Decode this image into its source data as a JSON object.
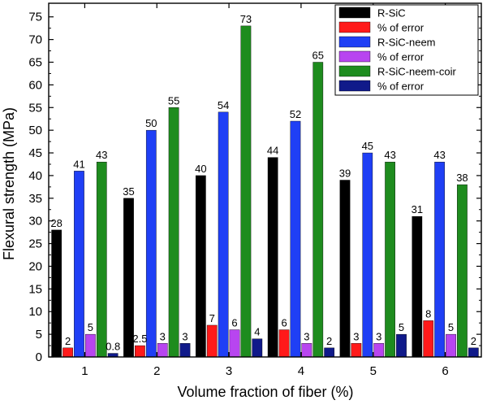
{
  "chart_data": {
    "type": "bar",
    "xlabel": "Volume fraction of fiber (%)",
    "ylabel": "Flexural strength (MPa)",
    "ylim": [
      0,
      78
    ],
    "yticks": [
      0,
      5,
      10,
      15,
      20,
      25,
      30,
      35,
      40,
      45,
      50,
      55,
      60,
      65,
      70,
      75
    ],
    "categories": [
      "1",
      "2",
      "3",
      "4",
      "5",
      "6"
    ],
    "legend_position": "top-right",
    "grid": false,
    "series": [
      {
        "name": "R-SiC",
        "color": "#000000",
        "values": [
          28,
          35,
          40,
          44,
          39,
          31
        ],
        "labels": [
          "28",
          "35",
          "40",
          "44",
          "39",
          "31"
        ]
      },
      {
        "name": "% of error",
        "color": "#ff1a1a",
        "values": [
          2,
          2.5,
          7,
          6,
          3,
          8
        ],
        "labels": [
          "2",
          "2.5",
          "7",
          "6",
          "3",
          "8"
        ]
      },
      {
        "name": "R-SiC-neem",
        "color": "#1f3ff5",
        "values": [
          41,
          50,
          54,
          52,
          45,
          43
        ],
        "labels": [
          "41",
          "50",
          "54",
          "52",
          "45",
          "43"
        ]
      },
      {
        "name": "% of error",
        "color": "#b845f0",
        "values": [
          5,
          3,
          6,
          3,
          3,
          5
        ],
        "labels": [
          "5",
          "3",
          "6",
          "3",
          "3",
          "5"
        ]
      },
      {
        "name": "R-SiC-neem-coir",
        "color": "#1e8c1e",
        "values": [
          43,
          55,
          73,
          65,
          43,
          38
        ],
        "labels": [
          "43",
          "55",
          "73",
          "65",
          "43",
          "38"
        ]
      },
      {
        "name": "% of error",
        "color": "#101a8a",
        "values": [
          0.8,
          3,
          4,
          2,
          5,
          2
        ],
        "labels": [
          "0.8",
          "3",
          "4",
          "2",
          "5",
          "2"
        ]
      }
    ]
  }
}
